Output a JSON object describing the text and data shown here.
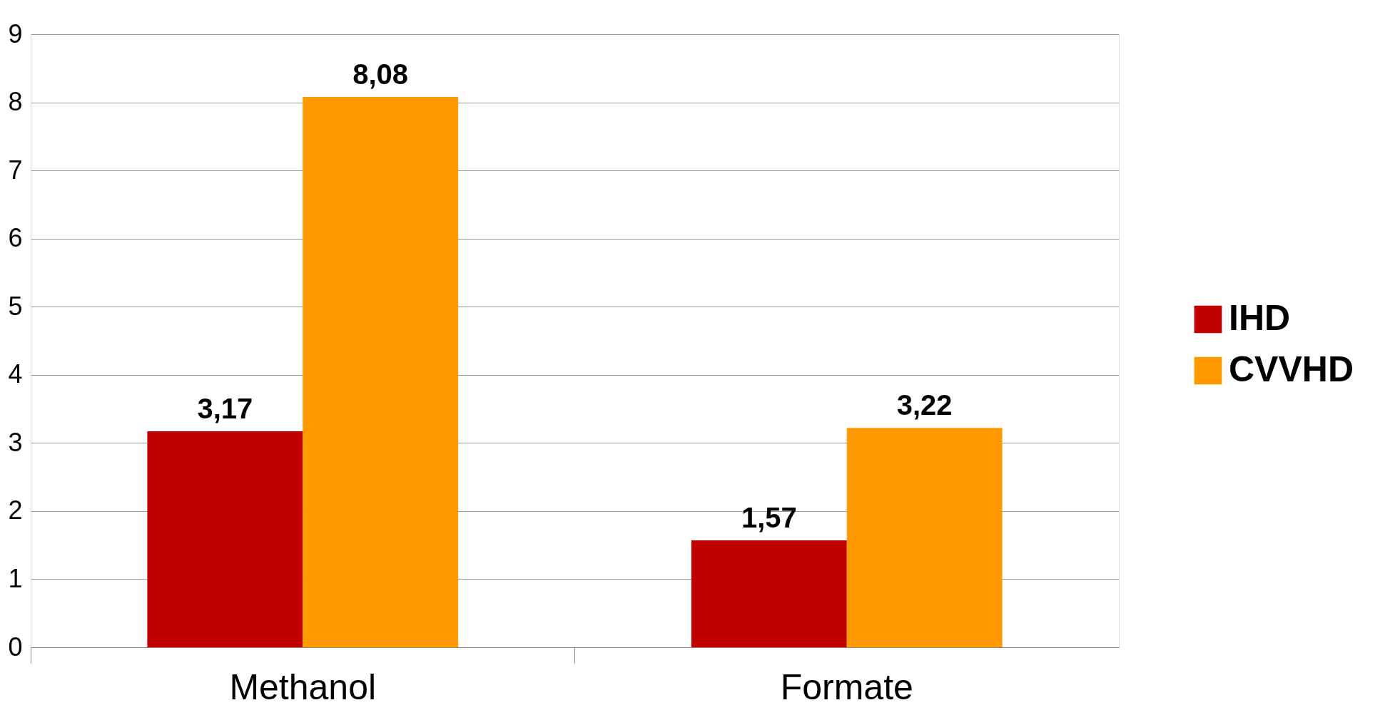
{
  "chart_data": {
    "type": "bar",
    "categories": [
      "Methanol",
      "Formate"
    ],
    "series": [
      {
        "name": "IHD",
        "color": "#c00000",
        "values": [
          3.17,
          1.57
        ],
        "value_labels": [
          "3,17",
          "1,57"
        ]
      },
      {
        "name": "CVVHD",
        "color": "#ff9900",
        "values": [
          8.08,
          3.22
        ],
        "value_labels": [
          "8,08",
          "3,22"
        ]
      }
    ],
    "ylim": [
      0,
      9
    ],
    "yticks": [
      0,
      1,
      2,
      3,
      4,
      5,
      6,
      7,
      8,
      9
    ],
    "grid": "y",
    "legend": "right"
  }
}
